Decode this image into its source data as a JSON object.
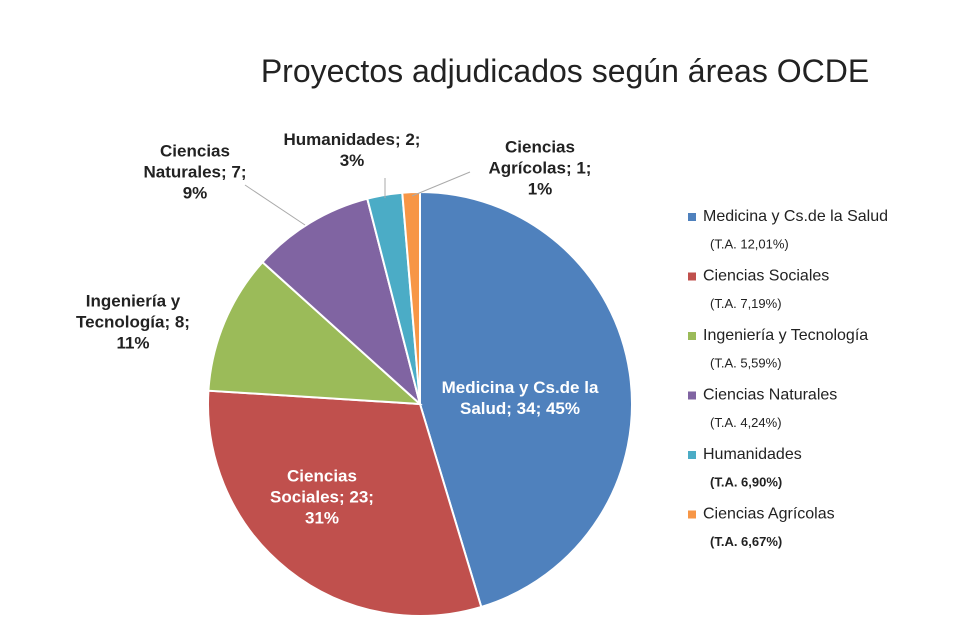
{
  "chart_data": {
    "type": "pie",
    "title": "Proyectos adjudicados según áreas OCDE",
    "categories": [
      "Medicina y Cs.de la Salud",
      "Ciencias Sociales",
      "Ingeniería y Tecnología",
      "Ciencias Naturales",
      "Humanidades",
      "Ciencias Agrícolas"
    ],
    "values": [
      34,
      23,
      8,
      7,
      2,
      1
    ],
    "value_labels": [
      "Medicina y Cs.de la Salud; 34; 45%",
      "Ciencias Sociales; 23; 31%",
      "Ingeniería y Tecnología; 8; 11%",
      "Ciencias Naturales; 7; 9%",
      "Humanidades; 2; 3%",
      "Ciencias Agrícolas; 1; 1%"
    ],
    "colors": [
      "#4f81bd",
      "#c0504d",
      "#9bbb59",
      "#8064a2",
      "#4bacc6",
      "#f79646"
    ],
    "legend_notes": [
      "(T.A. 12,01%)",
      "(T.A.  7,19%)",
      "(T.A. 5,59%)",
      "(T.A.  4,24%)",
      "(T.A.  6,90%)",
      "(T.A.  6,67%)"
    ],
    "legend": "right"
  }
}
